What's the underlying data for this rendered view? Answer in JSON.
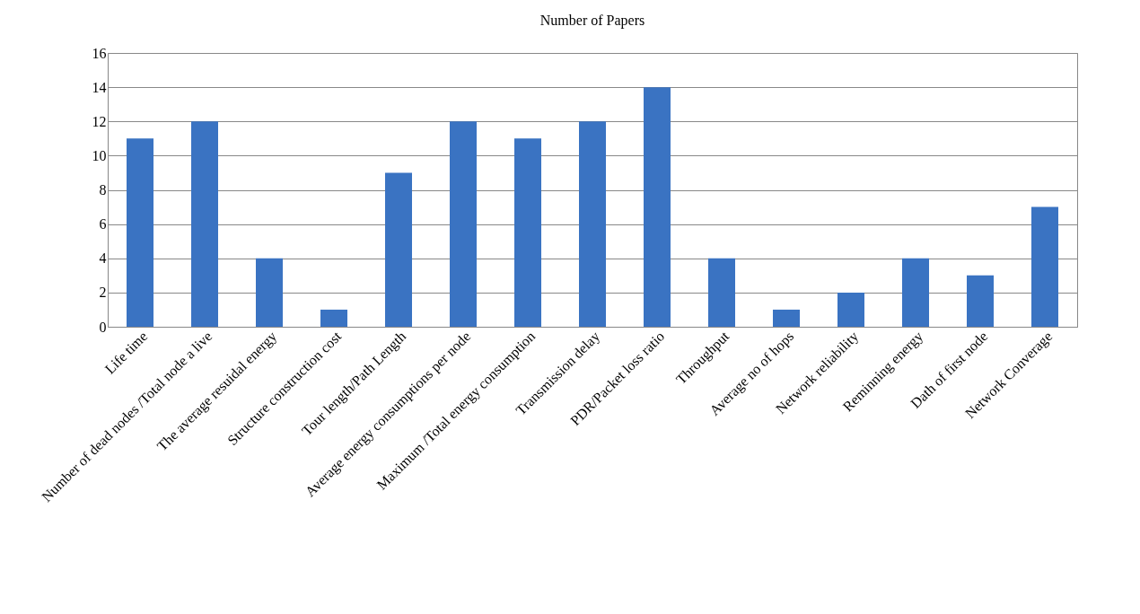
{
  "chart_data": {
    "type": "bar",
    "title": "Number of Papers",
    "categories": [
      "Life time",
      "Number of dead nodes  /Total node a live",
      "The average resuidal energy",
      "Structure construction cost",
      "Tour length/Path Length",
      "Average energy consumptions per node",
      "Maximum /Total energy consumption",
      "Transmission  delay",
      "PDR/Packet loss ratio",
      "Throughput",
      "Average no of hops",
      "Network reliability",
      "Reminning energy",
      "Dath of first node",
      "Network Converage"
    ],
    "values": [
      11,
      12,
      4,
      1,
      9,
      12,
      11,
      12,
      14,
      4,
      1,
      2,
      4,
      3,
      7
    ],
    "color": "#3a73c2",
    "ylim": [
      0,
      16
    ],
    "yticks": [
      0,
      2,
      4,
      6,
      8,
      10,
      12,
      14,
      16
    ],
    "grid": "y"
  }
}
